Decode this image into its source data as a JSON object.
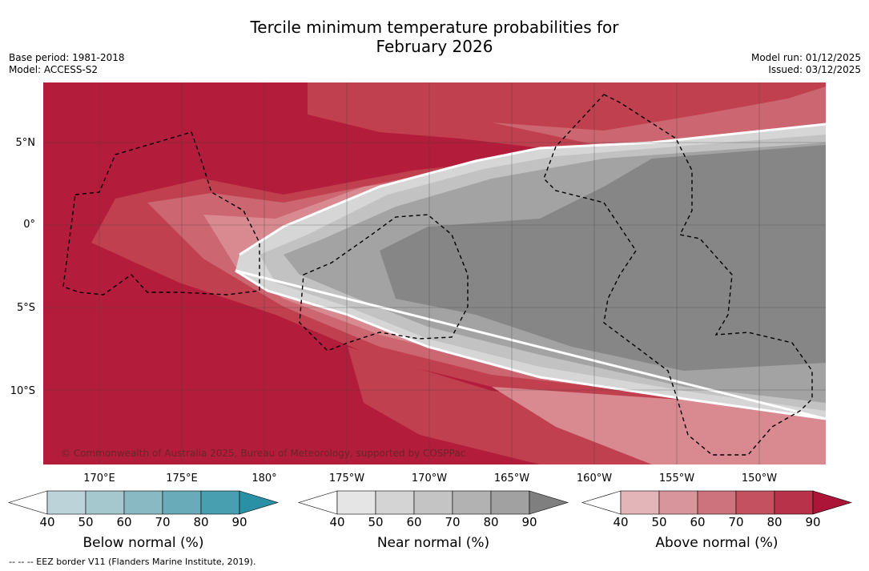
{
  "header": {
    "title_line1": "Tercile minimum temperature probabilities for",
    "title_line2": "February 2026",
    "base_period": "Base period: 1981-2018",
    "model": "Model: ACCESS-S2",
    "model_run": "Model run: 01/12/2025",
    "issued": "Issued: 03/12/2025"
  },
  "map": {
    "lat_labels": [
      "5°N",
      "0°",
      "5°S",
      "10°S"
    ],
    "lon_labels": [
      "170°E",
      "175°E",
      "180°",
      "175°W",
      "170°W",
      "165°W",
      "160°W",
      "155°W",
      "150°W"
    ],
    "copyright": "© Commonwealth of Australia 2025, Bureau of Meteorology, supported by COSPPac",
    "colors": {
      "above_90": "#b31c3a",
      "above_80": "#c0404f",
      "above_70": "#cc6670",
      "above_60": "#d88a90",
      "near_50": "#d6d6d6",
      "near_60": "#c2c2c2",
      "near_70": "#a3a3a3",
      "near_90": "#868686",
      "grid": "#444444",
      "eez": "#000000"
    }
  },
  "legend": {
    "below": {
      "title": "Below normal (%)",
      "ticks": [
        "40",
        "50",
        "60",
        "70",
        "80",
        "90"
      ],
      "colors": [
        "#ffffff",
        "#bcd3da",
        "#a5c8ce",
        "#89b9c2",
        "#6aabb9",
        "#489faf",
        "#2a90a6"
      ]
    },
    "near": {
      "title": "Near normal (%)",
      "ticks": [
        "40",
        "50",
        "60",
        "70",
        "80",
        "90"
      ],
      "colors": [
        "#ffffff",
        "#e5e5e5",
        "#d4d4d4",
        "#c4c4c4",
        "#b2b2b2",
        "#a1a1a1",
        "#7f7f7f"
      ]
    },
    "above": {
      "title": "Above normal (%)",
      "ticks": [
        "40",
        "50",
        "60",
        "70",
        "80",
        "90"
      ],
      "colors": [
        "#ffffff",
        "#e3b5b9",
        "#d8959b",
        "#cd737d",
        "#c3515f",
        "#b83249",
        "#ad1538"
      ]
    }
  },
  "footnote": "--  --  -- EEZ border V11 (Flanders Marine Institute, 2019)."
}
